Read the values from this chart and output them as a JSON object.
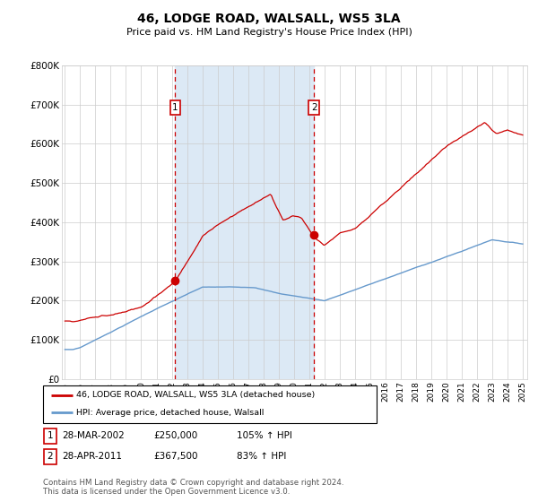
{
  "title": "46, LODGE ROAD, WALSALL, WS5 3LA",
  "subtitle": "Price paid vs. HM Land Registry's House Price Index (HPI)",
  "legend_line1": "46, LODGE ROAD, WALSALL, WS5 3LA (detached house)",
  "legend_line2": "HPI: Average price, detached house, Walsall",
  "transaction1_date": "28-MAR-2002",
  "transaction1_price": "£250,000",
  "transaction1_hpi": "105% ↑ HPI",
  "transaction2_date": "28-APR-2011",
  "transaction2_price": "£367,500",
  "transaction2_hpi": "83% ↑ HPI",
  "footnote": "Contains HM Land Registry data © Crown copyright and database right 2024.\nThis data is licensed under the Open Government Licence v3.0.",
  "red_color": "#cc0000",
  "blue_color": "#6699cc",
  "shading_color": "#dce9f5",
  "background_color": "#ffffff",
  "grid_color": "#cccccc",
  "ylim_max": 800000,
  "year_start": 1995,
  "year_end": 2025,
  "transaction1_year": 2002.23,
  "transaction2_year": 2011.32,
  "transaction1_price_val": 250000,
  "transaction2_price_val": 367500,
  "yticks": [
    0,
    100000,
    200000,
    300000,
    400000,
    500000,
    600000,
    700000,
    800000
  ],
  "ytick_labels": [
    "£0",
    "£100K",
    "£200K",
    "£300K",
    "£400K",
    "£500K",
    "£600K",
    "£700K",
    "£800K"
  ],
  "xticks": [
    1995,
    1996,
    1997,
    1998,
    1999,
    2000,
    2001,
    2002,
    2003,
    2004,
    2005,
    2006,
    2007,
    2008,
    2009,
    2010,
    2011,
    2012,
    2013,
    2014,
    2015,
    2016,
    2017,
    2018,
    2019,
    2020,
    2021,
    2022,
    2023,
    2024,
    2025
  ]
}
